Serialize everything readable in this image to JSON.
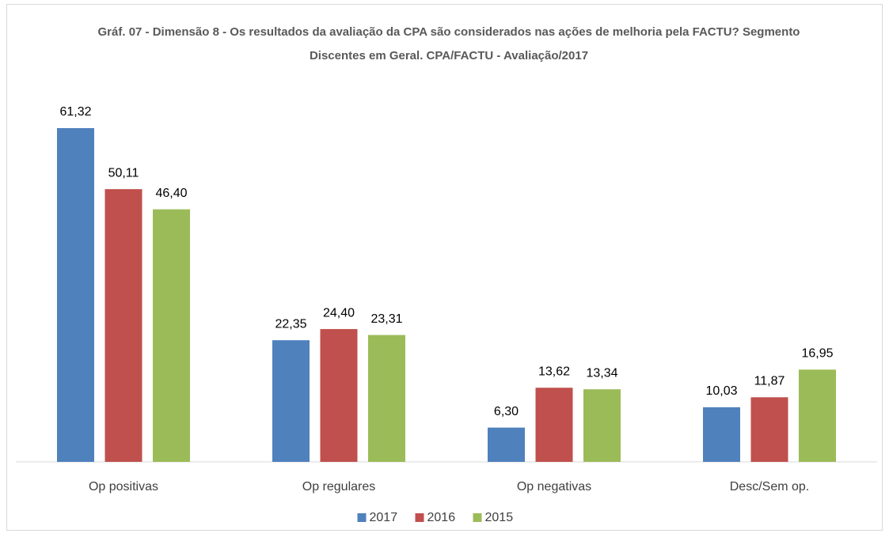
{
  "chart_data": {
    "type": "bar",
    "title": "Gráf. 07 - Dimensão 8 - Os resultados da avaliação da CPA são considerados nas ações de melhoria pela FACTU? Segmento Discentes em Geral. CPA/FACTU - Avaliação/2017",
    "categories": [
      "Op positivas",
      "Op regulares",
      "Op negativas",
      "Desc/Sem op."
    ],
    "series": [
      {
        "name": "2017",
        "color": "#4f81bd",
        "values": [
          61.32,
          22.35,
          6.3,
          10.03
        ],
        "value_labels": [
          "61,32",
          "22,35",
          "6,30",
          "10,03"
        ]
      },
      {
        "name": "2016",
        "color": "#c0504d",
        "values": [
          50.11,
          24.4,
          13.62,
          11.87
        ],
        "value_labels": [
          "50,11",
          "24,40",
          "13,62",
          "11,87"
        ]
      },
      {
        "name": "2015",
        "color": "#9bbb59",
        "values": [
          46.4,
          23.31,
          13.34,
          16.95
        ],
        "value_labels": [
          "46,40",
          "23,31",
          "13,34",
          "16,95"
        ]
      }
    ],
    "legend": "bottom"
  }
}
